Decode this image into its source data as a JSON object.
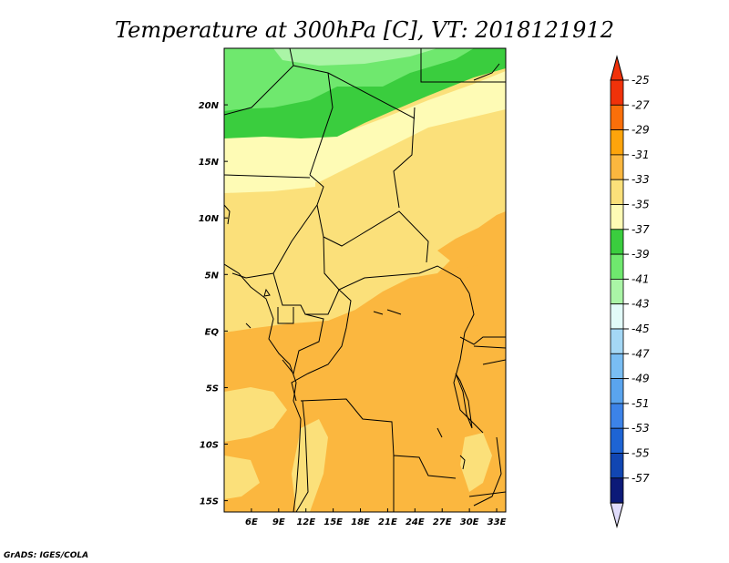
{
  "title": "Temperature at 300hPa [C], VT: 2018121912",
  "credit": "GrADS: IGES/COLA",
  "map": {
    "lon_range": [
      3,
      34
    ],
    "lat_range": [
      -16,
      25
    ],
    "lon_ticks": [
      "6E",
      "9E",
      "12E",
      "15E",
      "18E",
      "21E",
      "24E",
      "27E",
      "30E",
      "33E"
    ],
    "lat_ticks": [
      "20N",
      "15N",
      "10N",
      "5N",
      "EQ",
      "5S",
      "10S",
      "15S"
    ]
  },
  "colorbar": {
    "labels": [
      "-25",
      "-27",
      "-29",
      "-31",
      "-33",
      "-35",
      "-37",
      "-39",
      "-41",
      "-43",
      "-45",
      "-47",
      "-49",
      "-51",
      "-53",
      "-55",
      "-57"
    ],
    "colors": [
      "#f0320a",
      "#fa6f0a",
      "#fda40c",
      "#fbb73f",
      "#fbe07a",
      "#fefbb5",
      "#3acd3e",
      "#6fe86e",
      "#aaf5a6",
      "#e2fbf8",
      "#a4d7f5",
      "#79bdf3",
      "#5aa4ee",
      "#3c83e8",
      "#1e64d4",
      "#1146b2",
      "#0c1a78"
    ],
    "upper_arrow_color": "#f0320a",
    "lower_arrow_color": "#e0dcfb"
  },
  "fields": {
    "c_green_light": "#aaf5a6",
    "c_green_mid": "#6fe86e",
    "c_green_dark": "#3acd3e",
    "c_pale_yellow": "#fefbb5",
    "c_yellow": "#fbe07a",
    "c_orange": "#fbb73f"
  }
}
